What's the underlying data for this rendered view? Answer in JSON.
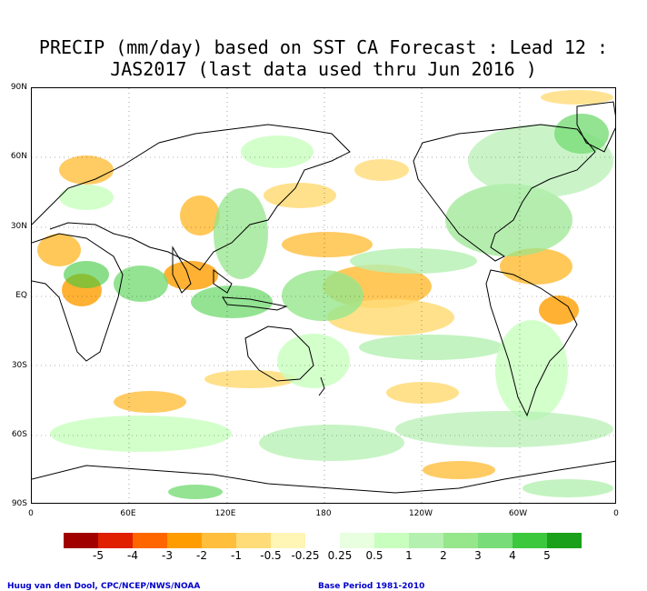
{
  "title_line1": "PRECIP (mm/day) based on SST CA Forecast : Lead 12 :",
  "title_line2": "JAS2017 (last data used thru Jun 2016 )",
  "lat_labels": [
    "90N",
    "60N",
    "30N",
    "EQ",
    "30S",
    "60S",
    "90S"
  ],
  "lon_labels": [
    "0",
    "60E",
    "120E",
    "180",
    "120W",
    "60W",
    "0"
  ],
  "legend": {
    "colors": [
      "#a00000",
      "#e01e00",
      "#ff6600",
      "#ff9d00",
      "#ffbe3c",
      "#ffdc78",
      "#fff5b4",
      "#ffffff",
      "#e8ffe0",
      "#c8ffbe",
      "#b4f0b0",
      "#96e68c",
      "#78dc78",
      "#3cc83c",
      "#1aa01a"
    ],
    "labels": [
      "-5",
      "-4",
      "-3",
      "-2",
      "-1",
      "-0.5",
      "-0.25",
      "0.25",
      "0.5",
      "1",
      "2",
      "3",
      "4",
      "5"
    ]
  },
  "credit_left": "Huug van den Dool, CPC/NCEP/NWS/NOAA",
  "credit_right": "Base Period 1981-2010",
  "colors": {
    "dry": "#ffbe3c",
    "wet": "#96e68c"
  }
}
